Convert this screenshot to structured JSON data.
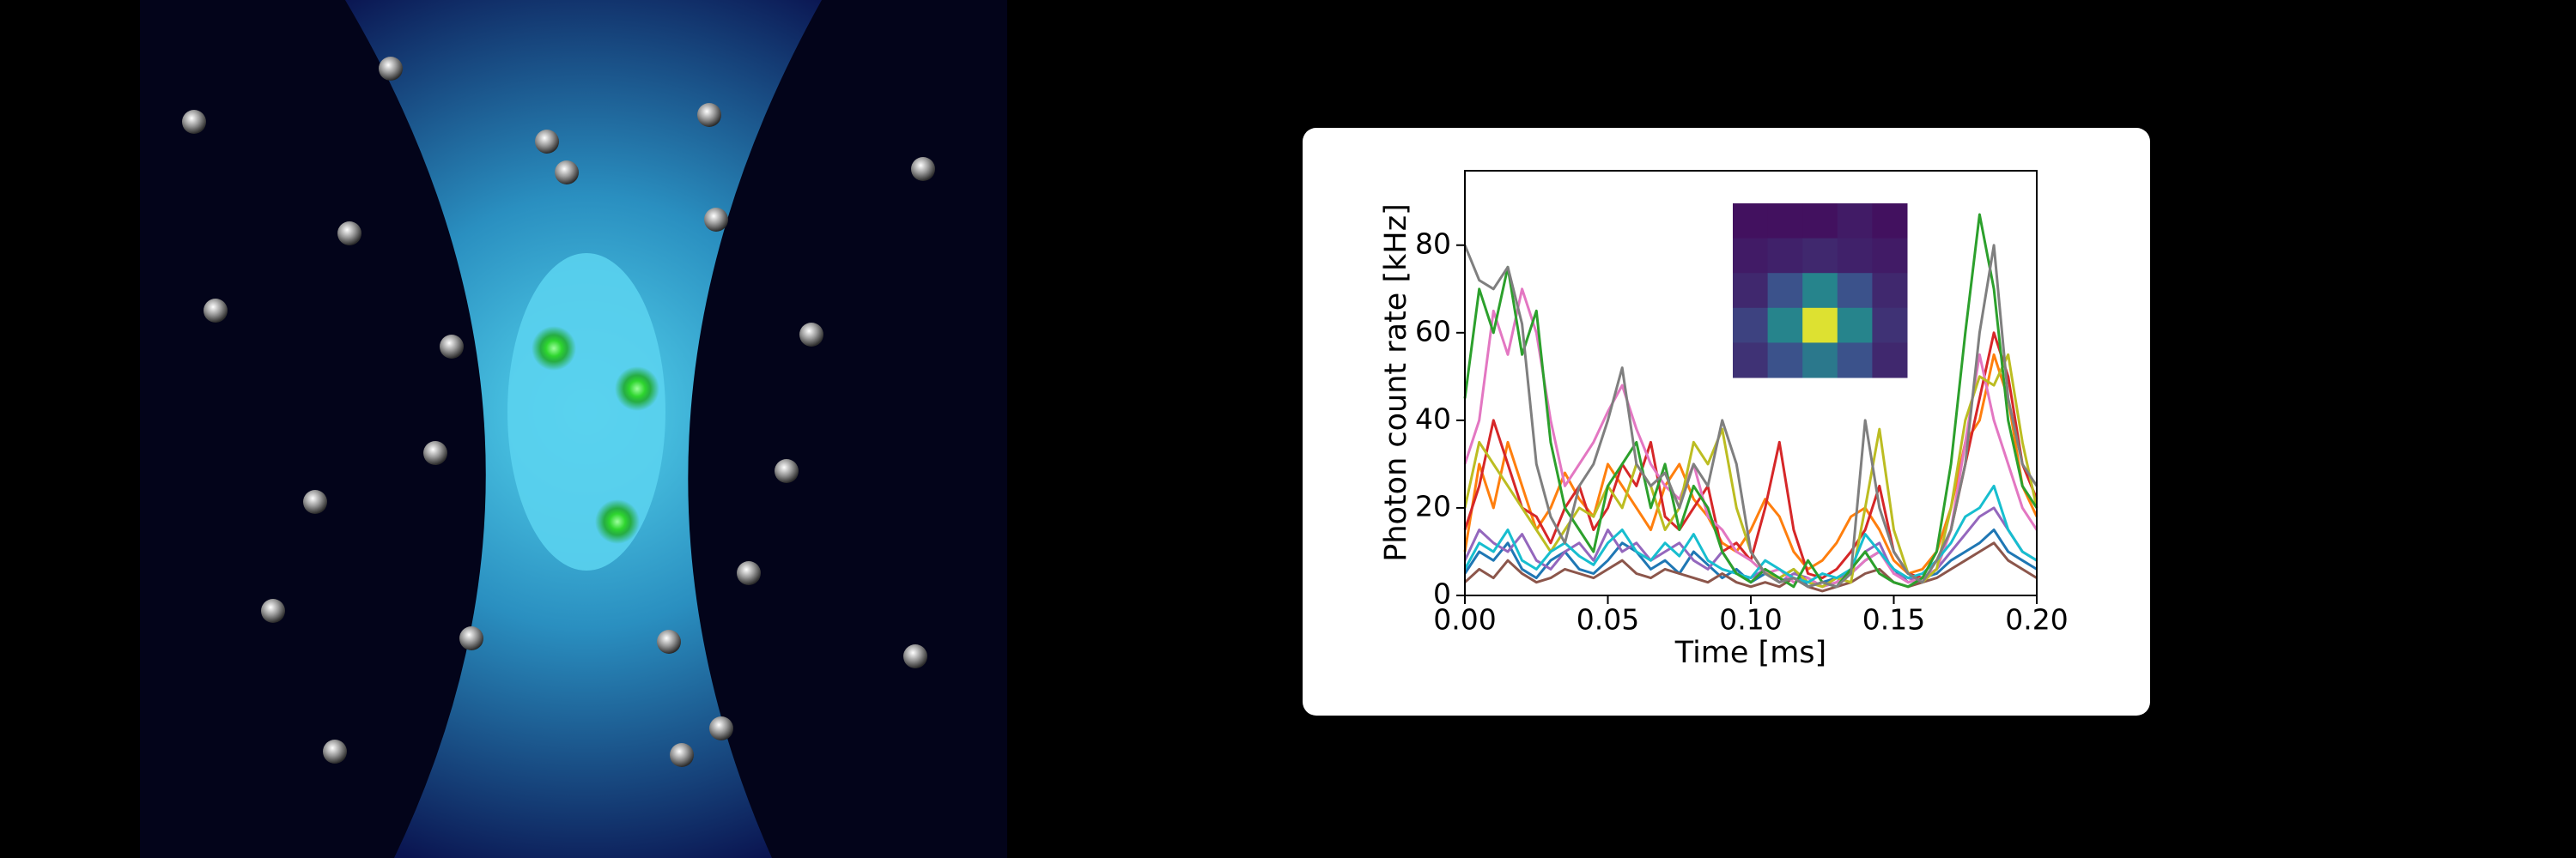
{
  "chart_data": [
    {
      "type": "line",
      "xlabel": "Time [ms]",
      "ylabel": "Photon count rate [kHz]",
      "x": [
        0,
        0.005,
        0.01,
        0.015,
        0.02,
        0.025,
        0.03,
        0.035,
        0.04,
        0.045,
        0.05,
        0.055,
        0.06,
        0.065,
        0.07,
        0.075,
        0.08,
        0.085,
        0.09,
        0.095,
        0.1,
        0.105,
        0.11,
        0.115,
        0.12,
        0.125,
        0.13,
        0.135,
        0.14,
        0.145,
        0.15,
        0.155,
        0.16,
        0.165,
        0.17,
        0.175,
        0.18,
        0.185,
        0.19,
        0.195,
        0.2
      ],
      "series": [
        {
          "color": "#1f77b4",
          "values": [
            5,
            10,
            8,
            12,
            6,
            4,
            8,
            10,
            6,
            5,
            8,
            12,
            10,
            6,
            8,
            5,
            10,
            7,
            4,
            6,
            3,
            5,
            4,
            6,
            2,
            3,
            4,
            5,
            8,
            10,
            6,
            3,
            4,
            5,
            8,
            10,
            12,
            15,
            10,
            8,
            6
          ]
        },
        {
          "color": "#ff7f0e",
          "values": [
            10,
            30,
            20,
            35,
            25,
            15,
            20,
            28,
            22,
            18,
            30,
            25,
            20,
            15,
            25,
            30,
            22,
            18,
            12,
            10,
            15,
            22,
            18,
            10,
            6,
            8,
            12,
            18,
            20,
            15,
            8,
            5,
            6,
            10,
            20,
            35,
            40,
            55,
            45,
            25,
            18
          ]
        },
        {
          "color": "#d62728",
          "values": [
            15,
            25,
            40,
            30,
            20,
            18,
            12,
            20,
            25,
            15,
            20,
            30,
            25,
            35,
            18,
            15,
            20,
            25,
            10,
            12,
            8,
            20,
            35,
            15,
            5,
            4,
            6,
            10,
            15,
            25,
            10,
            5,
            4,
            6,
            15,
            30,
            45,
            60,
            50,
            30,
            22
          ]
        },
        {
          "color": "#9467bd",
          "values": [
            8,
            15,
            12,
            10,
            14,
            8,
            6,
            10,
            12,
            8,
            15,
            10,
            12,
            8,
            10,
            12,
            8,
            6,
            10,
            5,
            4,
            6,
            3,
            5,
            4,
            2,
            3,
            6,
            10,
            12,
            5,
            4,
            3,
            6,
            10,
            14,
            18,
            20,
            15,
            10,
            8
          ]
        },
        {
          "color": "#8c564b",
          "values": [
            3,
            6,
            4,
            8,
            5,
            3,
            4,
            6,
            5,
            4,
            6,
            8,
            5,
            4,
            6,
            5,
            4,
            3,
            5,
            3,
            2,
            3,
            2,
            4,
            2,
            1,
            2,
            3,
            5,
            6,
            3,
            2,
            3,
            4,
            6,
            8,
            10,
            12,
            8,
            6,
            4
          ]
        },
        {
          "color": "#e377c2",
          "values": [
            30,
            40,
            65,
            55,
            70,
            60,
            40,
            25,
            30,
            35,
            42,
            48,
            38,
            30,
            25,
            22,
            30,
            18,
            15,
            10,
            8,
            5,
            6,
            3,
            4,
            2,
            3,
            5,
            8,
            10,
            5,
            3,
            4,
            6,
            15,
            35,
            55,
            40,
            30,
            20,
            15
          ]
        },
        {
          "color": "#bcbd22",
          "values": [
            20,
            35,
            30,
            25,
            20,
            15,
            10,
            15,
            20,
            18,
            25,
            20,
            30,
            25,
            15,
            20,
            35,
            30,
            38,
            20,
            10,
            5,
            4,
            6,
            3,
            2,
            4,
            3,
            20,
            38,
            15,
            5,
            3,
            6,
            20,
            40,
            50,
            48,
            55,
            35,
            20
          ]
        },
        {
          "color": "#17becf",
          "values": [
            6,
            12,
            10,
            15,
            8,
            6,
            10,
            12,
            9,
            7,
            12,
            15,
            10,
            8,
            12,
            9,
            14,
            8,
            6,
            5,
            4,
            8,
            6,
            4,
            3,
            5,
            4,
            6,
            14,
            10,
            6,
            4,
            5,
            8,
            12,
            18,
            20,
            25,
            15,
            10,
            8
          ]
        },
        {
          "color": "#2ca02c",
          "values": [
            45,
            70,
            60,
            75,
            55,
            65,
            35,
            20,
            15,
            10,
            25,
            30,
            35,
            20,
            30,
            15,
            25,
            20,
            10,
            5,
            3,
            6,
            4,
            2,
            8,
            3,
            2,
            6,
            10,
            5,
            3,
            2,
            4,
            10,
            30,
            60,
            87,
            70,
            40,
            25,
            20
          ]
        },
        {
          "color": "#7f7f7f",
          "values": [
            80,
            72,
            70,
            75,
            62,
            30,
            18,
            12,
            25,
            30,
            40,
            52,
            30,
            25,
            28,
            20,
            30,
            25,
            40,
            30,
            10,
            5,
            3,
            4,
            2,
            3,
            2,
            5,
            40,
            20,
            10,
            5,
            3,
            8,
            15,
            30,
            60,
            80,
            45,
            30,
            25
          ]
        }
      ],
      "xlim": [
        0,
        0.2
      ],
      "ylim": [
        0,
        97
      ],
      "xticks": [
        {
          "value": 0,
          "label": "0.00"
        },
        {
          "value": 0.05,
          "label": "0.05"
        },
        {
          "value": 0.1,
          "label": "0.10"
        },
        {
          "value": 0.15,
          "label": "0.15"
        },
        {
          "value": 0.2,
          "label": "0.20"
        }
      ],
      "yticks": [
        0,
        20,
        40,
        60,
        80
      ],
      "grid": false
    },
    {
      "type": "heatmap",
      "colormap": "viridis",
      "values": [
        [
          0.05,
          0.05,
          0.05,
          0.08,
          0.05
        ],
        [
          0.08,
          0.1,
          0.12,
          0.1,
          0.08
        ],
        [
          0.12,
          0.25,
          0.45,
          0.25,
          0.12
        ],
        [
          0.2,
          0.45,
          0.95,
          0.45,
          0.15
        ],
        [
          0.15,
          0.25,
          0.4,
          0.25,
          0.12
        ]
      ]
    }
  ]
}
